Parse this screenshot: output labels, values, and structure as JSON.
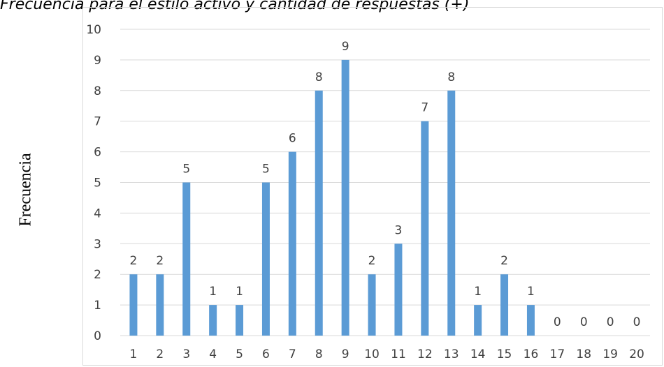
{
  "chart_data": {
    "type": "bar",
    "title": "Frecuencia para el estilo activo y cantidad de respuestas (+)",
    "xlabel": "",
    "ylabel": "Frecuencia",
    "categories": [
      "1",
      "2",
      "3",
      "4",
      "5",
      "6",
      "7",
      "8",
      "9",
      "10",
      "11",
      "12",
      "13",
      "14",
      "15",
      "16",
      "17",
      "18",
      "19",
      "20"
    ],
    "values": [
      2,
      2,
      5,
      1,
      1,
      5,
      6,
      8,
      9,
      2,
      3,
      7,
      8,
      1,
      2,
      1,
      0,
      0,
      0,
      0
    ],
    "ylim": [
      0,
      10
    ],
    "yticks": [
      0,
      1,
      2,
      3,
      4,
      5,
      6,
      7,
      8,
      9,
      10
    ],
    "grid": true,
    "legend": "none",
    "bar_color": "#5b9bd5",
    "grid_color": "#d9d9d9",
    "data_labels": true
  }
}
